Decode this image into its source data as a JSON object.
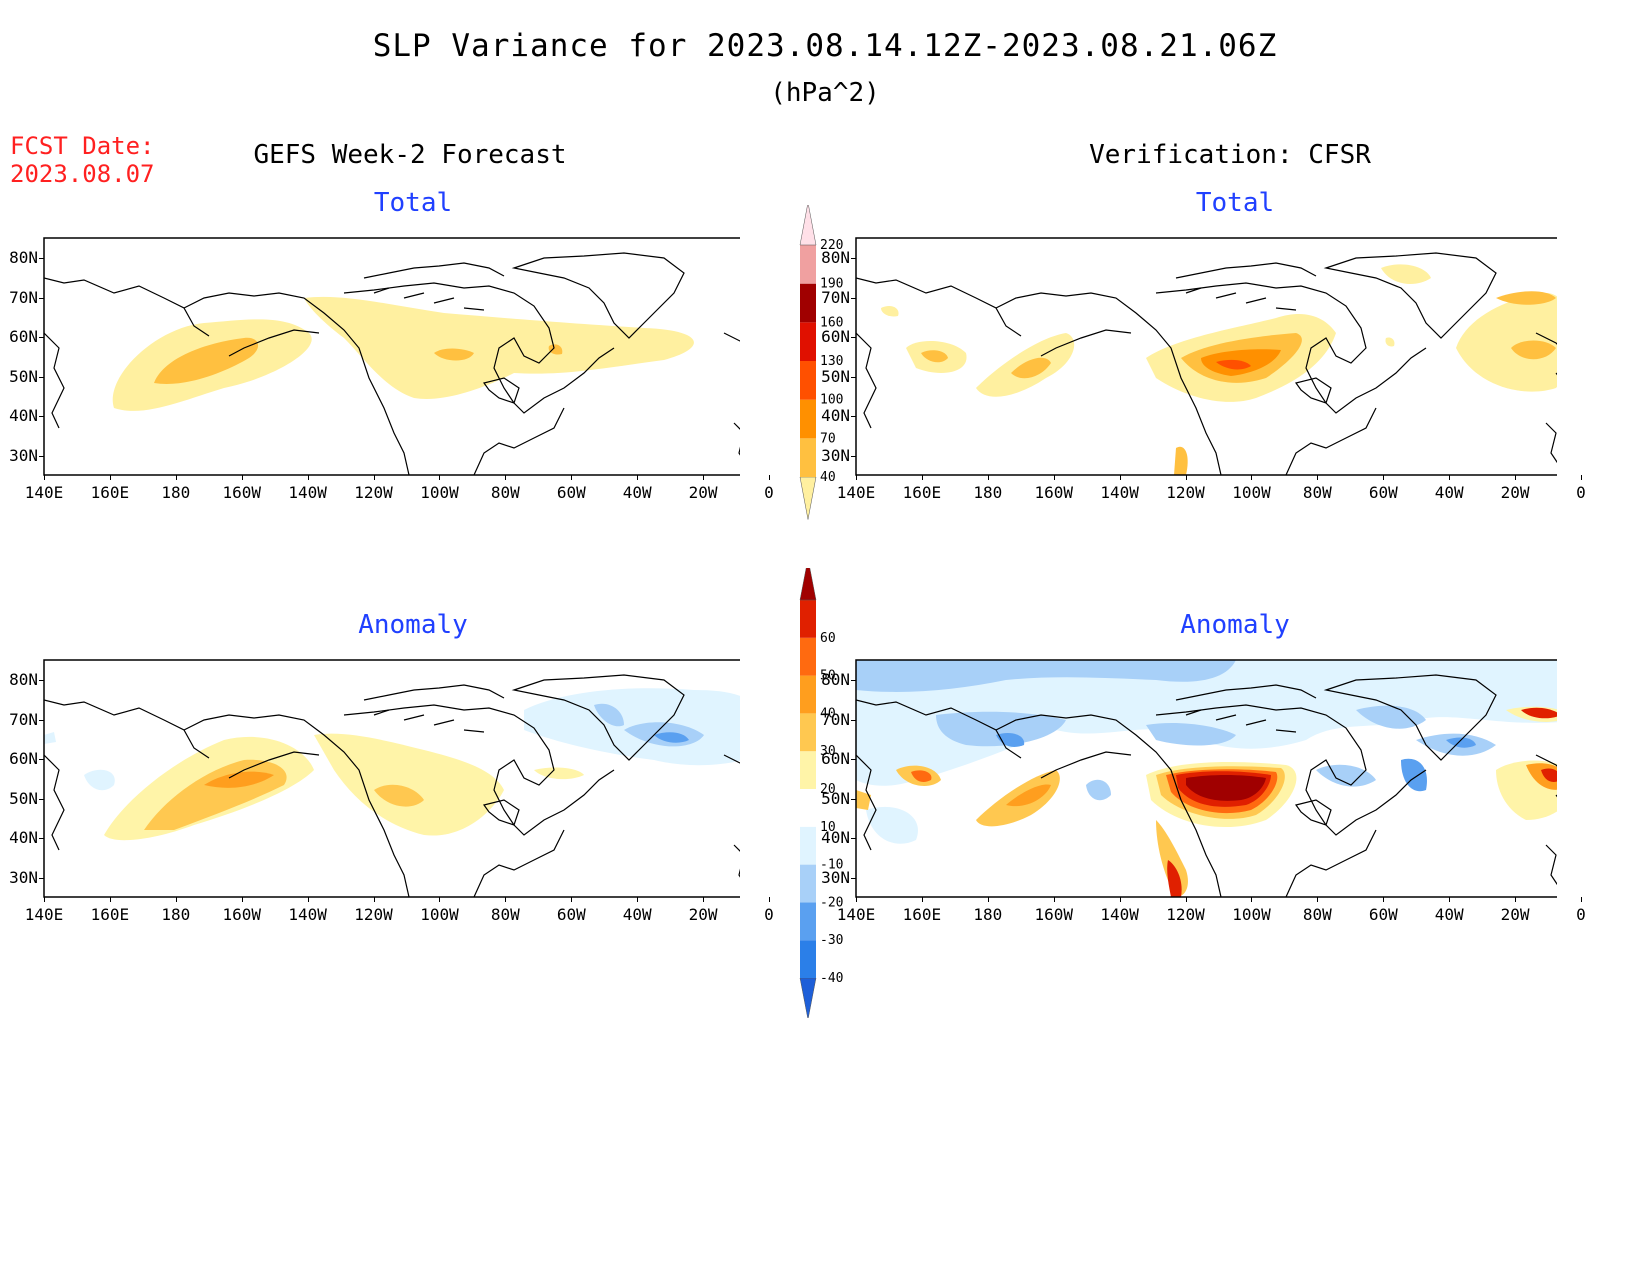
{
  "header": {
    "title": "SLP Variance for 2023.08.14.12Z-2023.08.21.06Z",
    "units": "(hPa^2)",
    "fcst_label": "FCST Date:",
    "fcst_date": "2023.08.07"
  },
  "columns": {
    "left": "GEFS Week-2 Forecast",
    "right": "Verification: CFSR"
  },
  "panels": {
    "total": "Total",
    "anomaly": "Anomaly"
  },
  "axes": {
    "lat_labels": [
      "80N",
      "70N",
      "60N",
      "50N",
      "40N",
      "30N"
    ],
    "lon_labels": [
      "140E",
      "160E",
      "180",
      "160W",
      "140W",
      "120W",
      "100W",
      "80W",
      "60W",
      "40W",
      "20W",
      "0"
    ]
  },
  "colorbars": {
    "total": {
      "levels": [
        "40",
        "70",
        "100",
        "130",
        "160",
        "190",
        "220"
      ],
      "colors": [
        "#fff0a0",
        "#ffc040",
        "#ff9000",
        "#ff5000",
        "#e01000",
        "#a00000",
        "#f0a0a0",
        "#ffe0e8"
      ]
    },
    "anomaly": {
      "levels": [
        "-40",
        "-30",
        "-20",
        "-10",
        "10",
        "20",
        "30",
        "40",
        "50",
        "60"
      ],
      "colors": [
        "#1e5fd8",
        "#2b7fe8",
        "#5aa0f0",
        "#a8d0f8",
        "#e0f4ff",
        "#ffffff",
        "#fff4a8",
        "#ffc850",
        "#ff9e1e",
        "#ff6a10",
        "#e02000",
        "#a00000"
      ]
    }
  },
  "icons": {
    "coastline": "coastline-lines",
    "colorbar-arrow": "triangle-end"
  }
}
